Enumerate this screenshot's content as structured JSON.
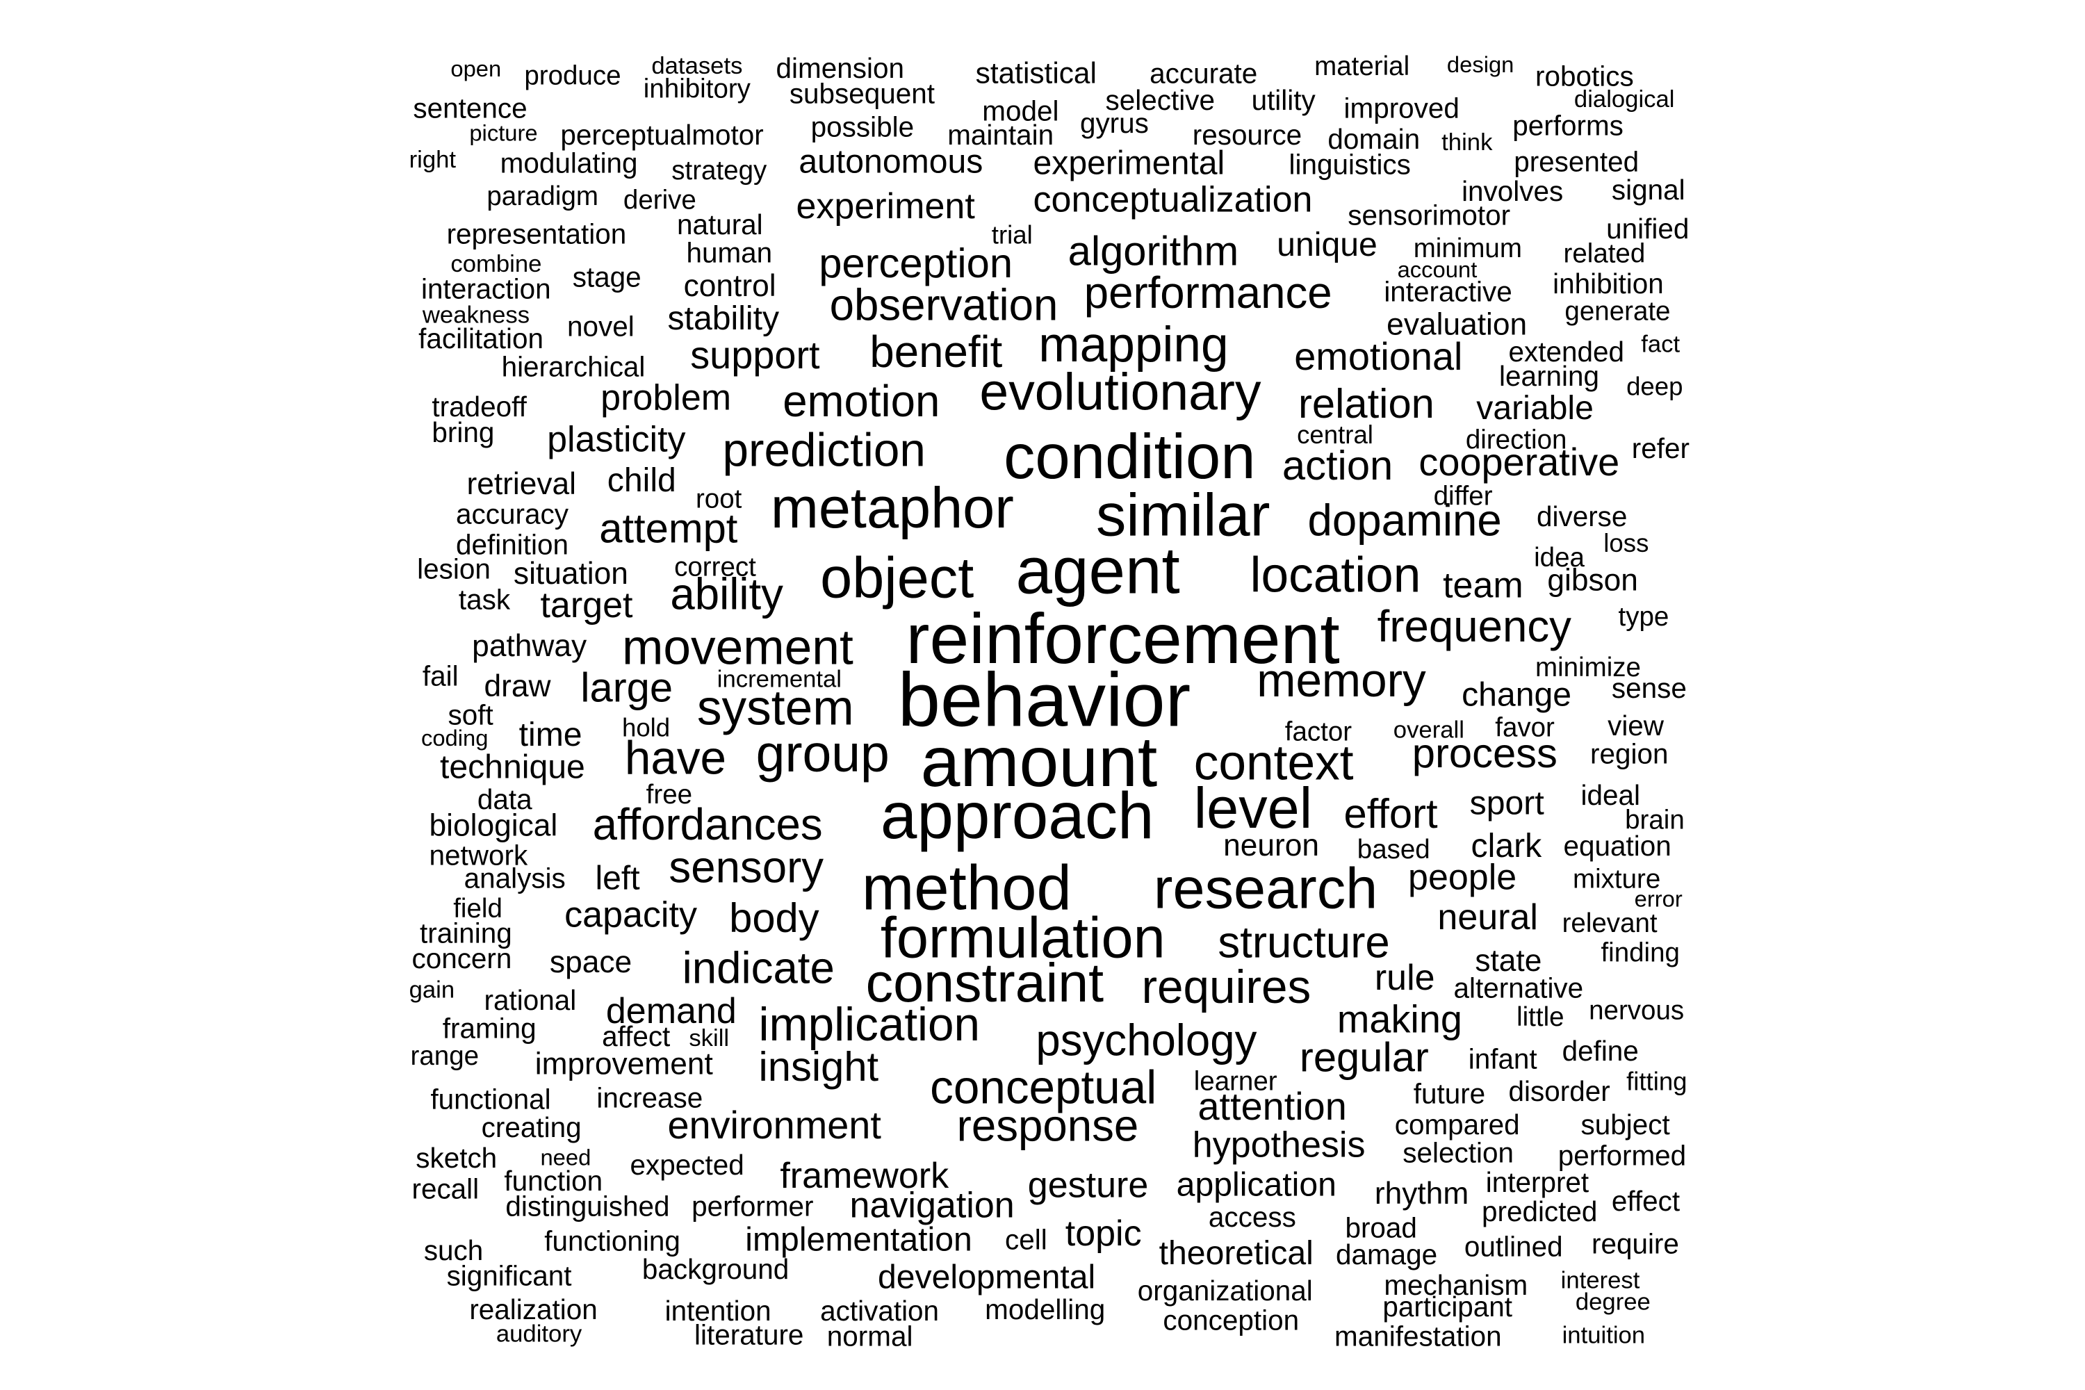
{
  "text_color": "#000000",
  "background": "#ffffff",
  "words": [
    {
      "text": "open"
    },
    {
      "text": "produce"
    },
    {
      "text": "datasets"
    },
    {
      "text": "inhibitory"
    },
    {
      "text": "dimension"
    },
    {
      "text": "subsequent"
    },
    {
      "text": "statistical"
    },
    {
      "text": "accurate"
    },
    {
      "text": "material"
    },
    {
      "text": "design"
    },
    {
      "text": "robotics"
    },
    {
      "text": "dialogical"
    },
    {
      "text": "sentence"
    },
    {
      "text": "selective"
    },
    {
      "text": "utility"
    },
    {
      "text": "model"
    },
    {
      "text": "improved"
    },
    {
      "text": "gyrus"
    },
    {
      "text": "picture"
    },
    {
      "text": "perceptualmotor"
    },
    {
      "text": "possible"
    },
    {
      "text": "maintain"
    },
    {
      "text": "resource"
    },
    {
      "text": "domain"
    },
    {
      "text": "think"
    },
    {
      "text": "performs"
    },
    {
      "text": "right"
    },
    {
      "text": "modulating"
    },
    {
      "text": "strategy"
    },
    {
      "text": "autonomous"
    },
    {
      "text": "experimental"
    },
    {
      "text": "linguistics"
    },
    {
      "text": "presented"
    },
    {
      "text": "paradigm"
    },
    {
      "text": "derive"
    },
    {
      "text": "involves"
    },
    {
      "text": "signal"
    },
    {
      "text": "conceptualization"
    },
    {
      "text": "experiment"
    },
    {
      "text": "sensorimotor"
    },
    {
      "text": "natural"
    },
    {
      "text": "representation"
    },
    {
      "text": "trial"
    },
    {
      "text": "unique"
    },
    {
      "text": "minimum"
    },
    {
      "text": "unified"
    },
    {
      "text": "human"
    },
    {
      "text": "algorithm"
    },
    {
      "text": "related"
    },
    {
      "text": "combine"
    },
    {
      "text": "account"
    },
    {
      "text": "perception"
    },
    {
      "text": "stage"
    },
    {
      "text": "inhibition"
    },
    {
      "text": "interaction"
    },
    {
      "text": "control"
    },
    {
      "text": "performance"
    },
    {
      "text": "interactive"
    },
    {
      "text": "generate"
    },
    {
      "text": "observation"
    },
    {
      "text": "weakness"
    },
    {
      "text": "stability"
    },
    {
      "text": "evaluation"
    },
    {
      "text": "novel"
    },
    {
      "text": "facilitation"
    },
    {
      "text": "mapping"
    },
    {
      "text": "fact"
    },
    {
      "text": "benefit"
    },
    {
      "text": "support"
    },
    {
      "text": "emotional"
    },
    {
      "text": "extended"
    },
    {
      "text": "hierarchical"
    },
    {
      "text": "learning"
    },
    {
      "text": "deep"
    },
    {
      "text": "evolutionary"
    },
    {
      "text": "tradeoff"
    },
    {
      "text": "problem"
    },
    {
      "text": "emotion"
    },
    {
      "text": "relation"
    },
    {
      "text": "variable"
    },
    {
      "text": "bring"
    },
    {
      "text": "plasticity"
    },
    {
      "text": "central"
    },
    {
      "text": "direction"
    },
    {
      "text": "refer"
    },
    {
      "text": "prediction"
    },
    {
      "text": "condition"
    },
    {
      "text": "cooperative"
    },
    {
      "text": "action"
    },
    {
      "text": "retrieval"
    },
    {
      "text": "child"
    },
    {
      "text": "differ"
    },
    {
      "text": "root"
    },
    {
      "text": "metaphor"
    },
    {
      "text": "similar"
    },
    {
      "text": "diverse"
    },
    {
      "text": "accuracy"
    },
    {
      "text": "dopamine"
    },
    {
      "text": "attempt"
    },
    {
      "text": "loss"
    },
    {
      "text": "definition"
    },
    {
      "text": "idea"
    },
    {
      "text": "correct"
    },
    {
      "text": "lesion"
    },
    {
      "text": "situation"
    },
    {
      "text": "agent"
    },
    {
      "text": "object"
    },
    {
      "text": "location"
    },
    {
      "text": "gibson"
    },
    {
      "text": "team"
    },
    {
      "text": "ability"
    },
    {
      "text": "task"
    },
    {
      "text": "target"
    },
    {
      "text": "type"
    },
    {
      "text": "reinforcement"
    },
    {
      "text": "frequency"
    },
    {
      "text": "pathway"
    },
    {
      "text": "movement"
    },
    {
      "text": "minimize"
    },
    {
      "text": "incremental"
    },
    {
      "text": "fail"
    },
    {
      "text": "memory"
    },
    {
      "text": "sense"
    },
    {
      "text": "draw"
    },
    {
      "text": "large"
    },
    {
      "text": "behavior"
    },
    {
      "text": "change"
    },
    {
      "text": "soft"
    },
    {
      "text": "system"
    },
    {
      "text": "view"
    },
    {
      "text": "hold"
    },
    {
      "text": "factor"
    },
    {
      "text": "overall"
    },
    {
      "text": "favor"
    },
    {
      "text": "coding"
    },
    {
      "text": "time"
    },
    {
      "text": "amount"
    },
    {
      "text": "region"
    },
    {
      "text": "technique"
    },
    {
      "text": "have"
    },
    {
      "text": "group"
    },
    {
      "text": "context"
    },
    {
      "text": "process"
    },
    {
      "text": "free"
    },
    {
      "text": "ideal"
    },
    {
      "text": "data"
    },
    {
      "text": "sport"
    },
    {
      "text": "approach"
    },
    {
      "text": "level"
    },
    {
      "text": "biological"
    },
    {
      "text": "affordances"
    },
    {
      "text": "effort"
    },
    {
      "text": "brain"
    },
    {
      "text": "neuron"
    },
    {
      "text": "equation"
    },
    {
      "text": "network"
    },
    {
      "text": "based"
    },
    {
      "text": "clark"
    },
    {
      "text": "sensory"
    },
    {
      "text": "analysis"
    },
    {
      "text": "left"
    },
    {
      "text": "method"
    },
    {
      "text": "research"
    },
    {
      "text": "mixture"
    },
    {
      "text": "people"
    },
    {
      "text": "error"
    },
    {
      "text": "field"
    },
    {
      "text": "capacity"
    },
    {
      "text": "body"
    },
    {
      "text": "neural"
    },
    {
      "text": "relevant"
    },
    {
      "text": "formulation"
    },
    {
      "text": "training"
    },
    {
      "text": "structure"
    },
    {
      "text": "finding"
    },
    {
      "text": "concern"
    },
    {
      "text": "space"
    },
    {
      "text": "state"
    },
    {
      "text": "indicate"
    },
    {
      "text": "rule"
    },
    {
      "text": "gain"
    },
    {
      "text": "alternative"
    },
    {
      "text": "constraint"
    },
    {
      "text": "requires"
    },
    {
      "text": "rational"
    },
    {
      "text": "nervous"
    },
    {
      "text": "demand"
    },
    {
      "text": "little"
    },
    {
      "text": "making"
    },
    {
      "text": "framing"
    },
    {
      "text": "implication"
    },
    {
      "text": "affect"
    },
    {
      "text": "skill"
    },
    {
      "text": "define"
    },
    {
      "text": "range"
    },
    {
      "text": "psychology"
    },
    {
      "text": "infant"
    },
    {
      "text": "regular"
    },
    {
      "text": "improvement"
    },
    {
      "text": "insight"
    },
    {
      "text": "fitting"
    },
    {
      "text": "learner"
    },
    {
      "text": "disorder"
    },
    {
      "text": "functional"
    },
    {
      "text": "increase"
    },
    {
      "text": "conceptual"
    },
    {
      "text": "future"
    },
    {
      "text": "attention"
    },
    {
      "text": "creating"
    },
    {
      "text": "subject"
    },
    {
      "text": "environment"
    },
    {
      "text": "compared"
    },
    {
      "text": "response"
    },
    {
      "text": "sketch"
    },
    {
      "text": "need"
    },
    {
      "text": "hypothesis"
    },
    {
      "text": "selection"
    },
    {
      "text": "performed"
    },
    {
      "text": "expected"
    },
    {
      "text": "framework"
    },
    {
      "text": "recall"
    },
    {
      "text": "function"
    },
    {
      "text": "interpret"
    },
    {
      "text": "gesture"
    },
    {
      "text": "application"
    },
    {
      "text": "rhythm"
    },
    {
      "text": "effect"
    },
    {
      "text": "distinguished"
    },
    {
      "text": "performer"
    },
    {
      "text": "navigation"
    },
    {
      "text": "predicted"
    },
    {
      "text": "access"
    },
    {
      "text": "functioning"
    },
    {
      "text": "broad"
    },
    {
      "text": "implementation"
    },
    {
      "text": "cell"
    },
    {
      "text": "topic"
    },
    {
      "text": "require"
    },
    {
      "text": "such"
    },
    {
      "text": "outlined"
    },
    {
      "text": "theoretical"
    },
    {
      "text": "damage"
    },
    {
      "text": "significant"
    },
    {
      "text": "background"
    },
    {
      "text": "developmental"
    },
    {
      "text": "interest"
    },
    {
      "text": "mechanism"
    },
    {
      "text": "organizational"
    },
    {
      "text": "degree"
    },
    {
      "text": "realization"
    },
    {
      "text": "intention"
    },
    {
      "text": "activation"
    },
    {
      "text": "modelling"
    },
    {
      "text": "participant"
    },
    {
      "text": "conception"
    },
    {
      "text": "auditory"
    },
    {
      "text": "literature"
    },
    {
      "text": "normal"
    },
    {
      "text": "intuition"
    },
    {
      "text": "manifestation"
    }
  ]
}
